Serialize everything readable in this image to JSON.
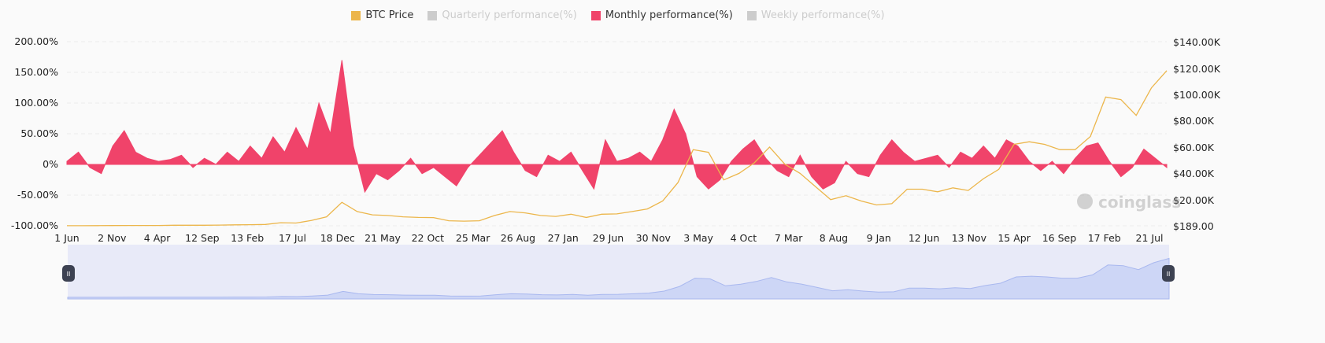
{
  "chart_data": {
    "type": "line",
    "legend_position": "top",
    "grid": true,
    "legend": [
      {
        "name": "BTC Price",
        "color": "#ecb64b",
        "active": true
      },
      {
        "name": "Quarterly performance(%)",
        "color": "#cccccc",
        "active": false
      },
      {
        "name": "Monthly performance(%)",
        "color": "#f0436a",
        "active": true
      },
      {
        "name": "Weekly performance(%)",
        "color": "#cccccc",
        "active": false
      }
    ],
    "x_tick_labels": [
      "1 Jun",
      "2 Nov",
      "4 Apr",
      "12 Sep",
      "13 Feb",
      "17 Jul",
      "18 Dec",
      "21 May",
      "22 Oct",
      "25 Mar",
      "26 Aug",
      "27 Jan",
      "29 Jun",
      "30 Nov",
      "3 May",
      "4 Oct",
      "7 Mar",
      "8 Aug",
      "9 Jan",
      "12 Jun",
      "13 Nov",
      "15 Apr",
      "16 Sep",
      "17 Feb",
      "21 Jul"
    ],
    "y_left": {
      "tick_labels": [
        "200.00%",
        "150.00%",
        "100.00%",
        "50.00%",
        "0%",
        "-50.00%",
        "-100.00%"
      ],
      "ylim": [
        -100,
        200
      ]
    },
    "y_right": {
      "tick_labels": [
        "$140.00K",
        "$120.00K",
        "$100.00K",
        "$80.00K",
        "$60.00K",
        "$40.00K",
        "$20.00K",
        "$189.00"
      ],
      "ylim": [
        189,
        140000
      ]
    },
    "series": [
      {
        "name": "BTC Price",
        "axis": "right",
        "unit": "K USD",
        "values": [
          0.23,
          0.25,
          0.3,
          0.35,
          0.42,
          0.41,
          0.42,
          0.6,
          0.6,
          0.6,
          0.7,
          0.9,
          1.0,
          1.2,
          2.5,
          2.3,
          4.2,
          7,
          18,
          11,
          8.5,
          8,
          7,
          6.5,
          6.4,
          4,
          3.7,
          4,
          8,
          11,
          10,
          8,
          7.3,
          9,
          6.5,
          9,
          9.2,
          11,
          13,
          19,
          33,
          58,
          56,
          35,
          40,
          48,
          60,
          47,
          40,
          30,
          20,
          23,
          19,
          16,
          17,
          28,
          28,
          26,
          29,
          27,
          36,
          43,
          62,
          64,
          62,
          58,
          58,
          68,
          98,
          96,
          84,
          105,
          118
        ]
      },
      {
        "name": "Monthly performance(%)",
        "axis": "left",
        "values": [
          5,
          20,
          -5,
          -15,
          30,
          55,
          20,
          10,
          5,
          8,
          15,
          -5,
          10,
          0,
          20,
          5,
          30,
          10,
          45,
          20,
          60,
          25,
          100,
          50,
          170,
          30,
          -45,
          -15,
          -25,
          -10,
          10,
          -15,
          -5,
          -20,
          -35,
          -5,
          15,
          35,
          55,
          20,
          -10,
          -20,
          15,
          5,
          20,
          -10,
          -40,
          40,
          5,
          10,
          20,
          5,
          40,
          90,
          50,
          -20,
          -40,
          -25,
          5,
          25,
          40,
          10,
          -10,
          -20,
          15,
          -20,
          -40,
          -30,
          5,
          -15,
          -20,
          15,
          40,
          20,
          5,
          10,
          15,
          -5,
          20,
          10,
          30,
          10,
          40,
          30,
          5,
          -10,
          5,
          -15,
          10,
          30,
          35,
          5,
          -20,
          -5,
          25,
          10,
          -5
        ]
      }
    ]
  },
  "watermark": "coinglass",
  "navigator": {
    "handle_glyph": "II"
  }
}
